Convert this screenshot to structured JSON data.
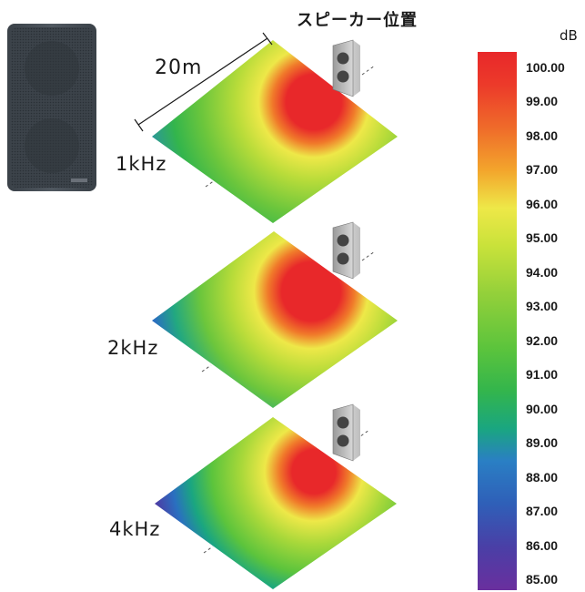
{
  "title": "スピーカー位置",
  "distance_label": "20m",
  "unit": "dB",
  "maps": [
    {
      "label": "1kHz"
    },
    {
      "label": "2kHz"
    },
    {
      "label": "4kHz"
    }
  ],
  "scale": {
    "ticks": [
      "100.00",
      "99.00",
      "98.00",
      "97.00",
      "96.00",
      "95.00",
      "94.00",
      "93.00",
      "92.00",
      "91.00",
      "90.00",
      "89.00",
      "88.00",
      "87.00",
      "86.00",
      "85.00"
    ],
    "colors": [
      "#e8282a",
      "#ec4a2a",
      "#ef7a2a",
      "#f3a52c",
      "#eee848",
      "#c9e23a",
      "#93d03a",
      "#5cc43c",
      "#33b54c",
      "#1aa680",
      "#2a7fc4",
      "#2f5fb8",
      "#4a3fa6",
      "#6a2f9e"
    ]
  },
  "icons": {
    "product": "speaker-product-icon",
    "position": "speaker-position-icon"
  }
}
